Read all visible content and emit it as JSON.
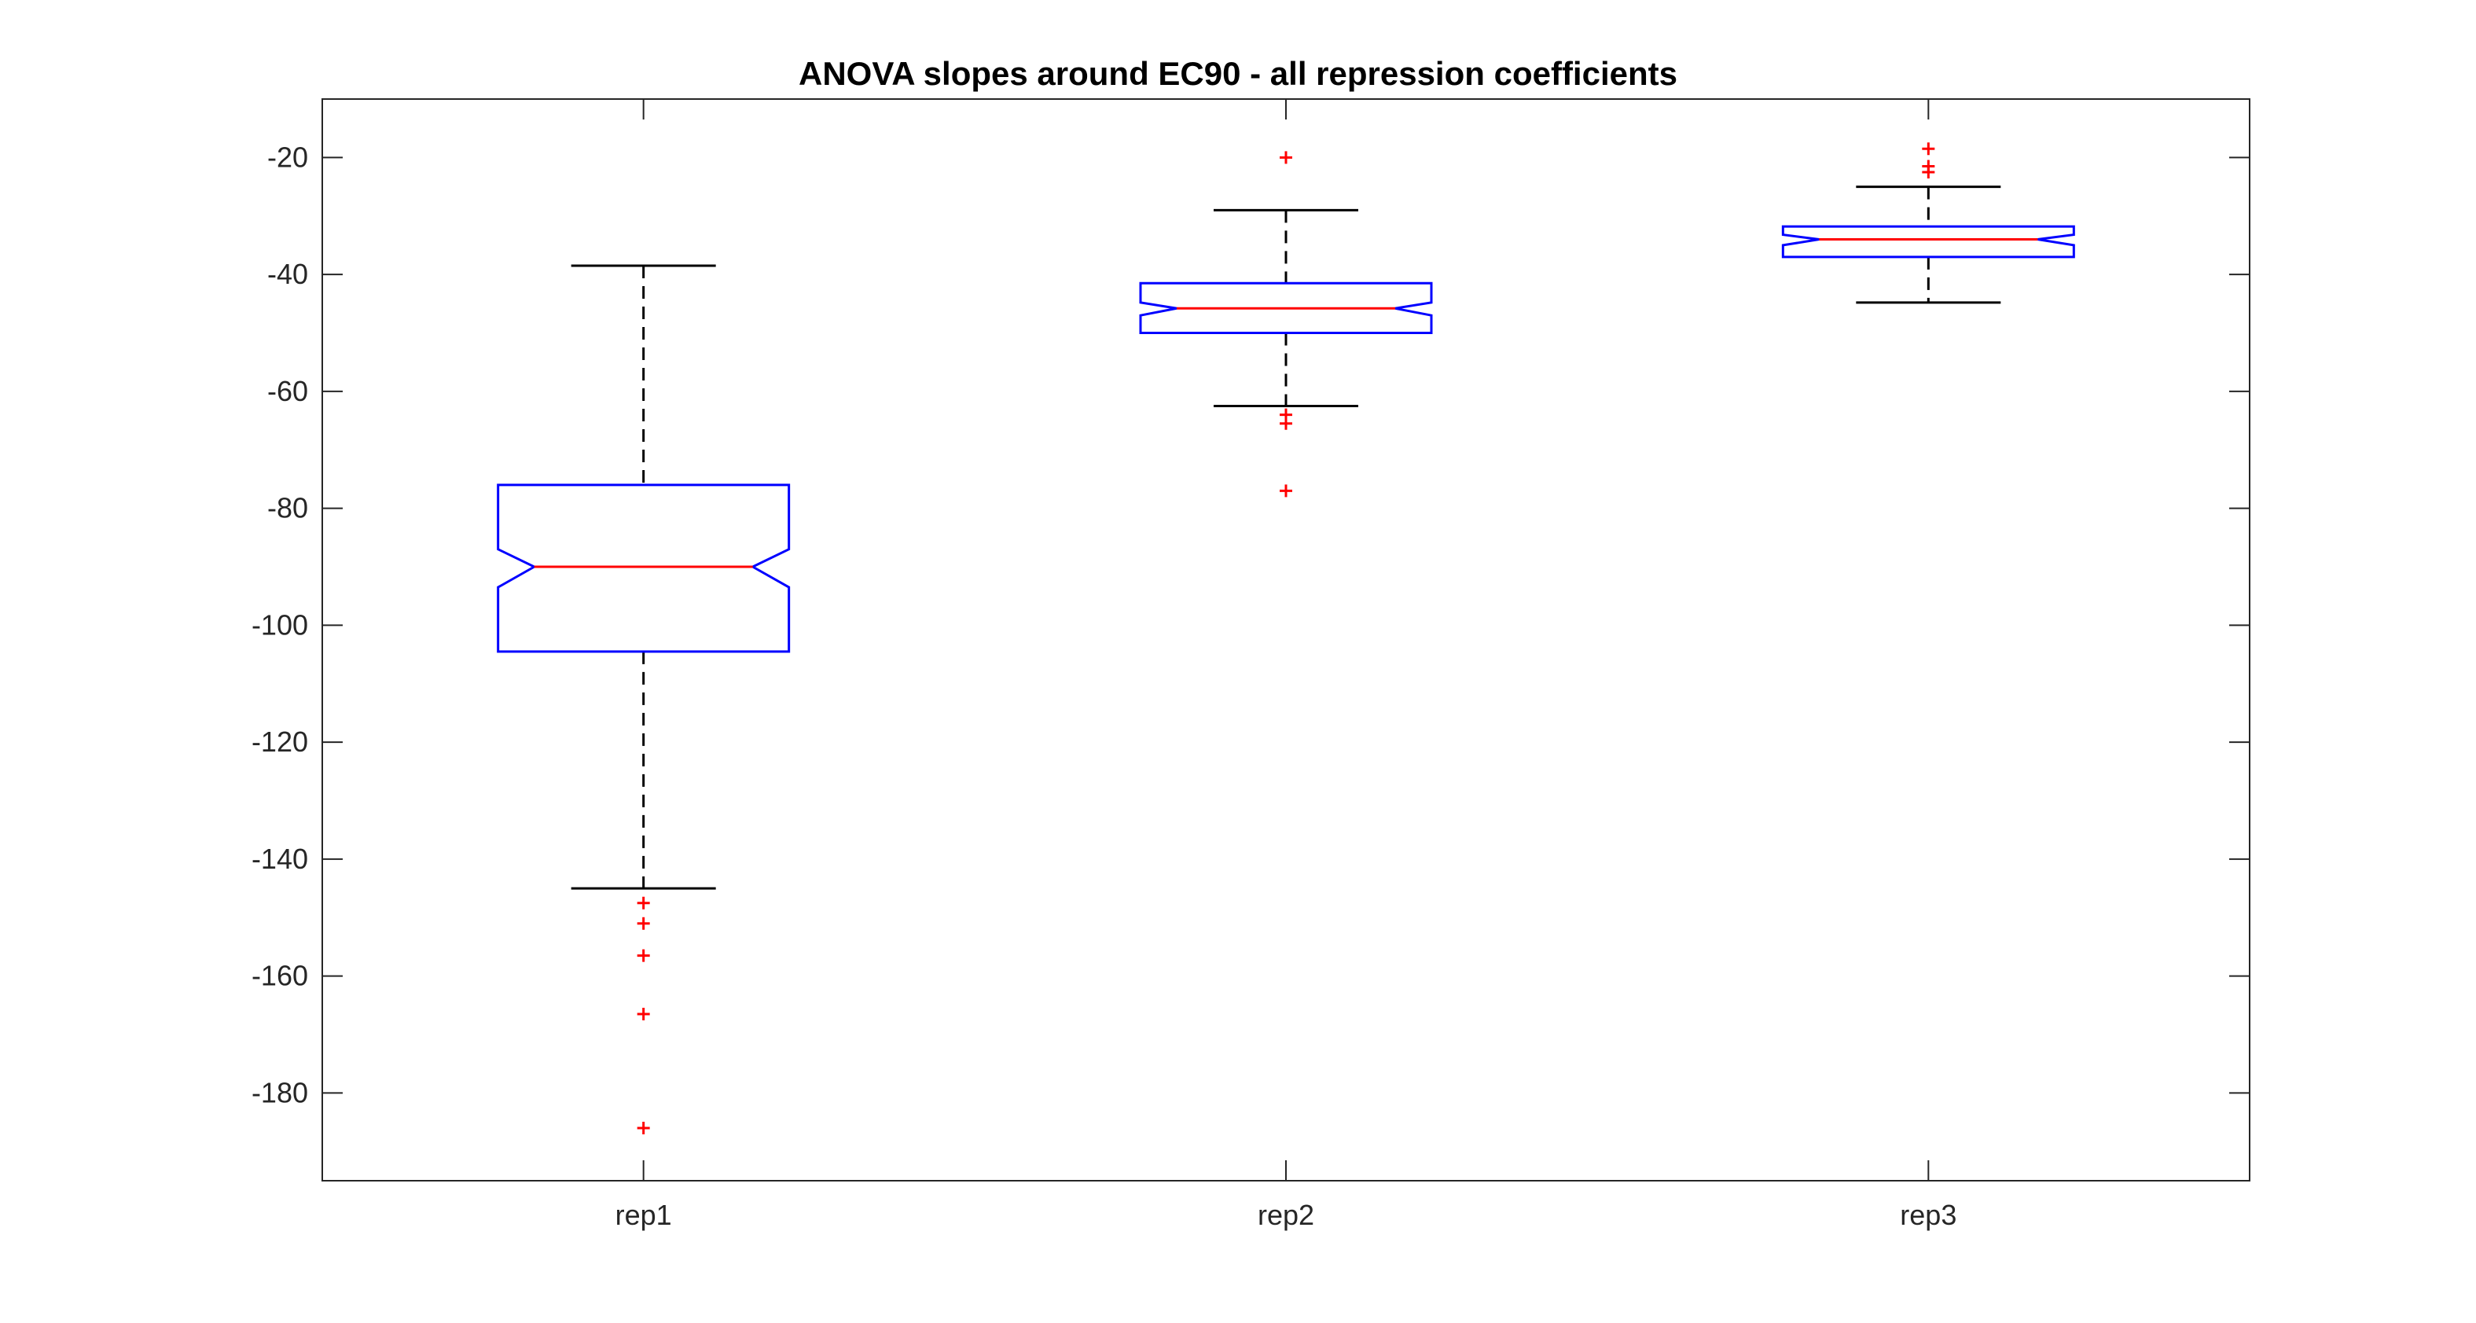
{
  "chart_data": {
    "type": "boxplot",
    "title": "ANOVA slopes around EC90 - all repression coefficients",
    "xlabel": "",
    "ylabel": "",
    "categories": [
      "rep1",
      "rep2",
      "rep3"
    ],
    "ylim": [
      -195,
      -10
    ],
    "yticks": [
      -20,
      -40,
      -60,
      -80,
      -100,
      -120,
      -140,
      -160,
      -180
    ],
    "grid": false,
    "notched": true,
    "boxes": [
      {
        "label": "rep1",
        "whisker_low": -145,
        "q1": -104.5,
        "notch_low": -93.5,
        "median": -90,
        "notch_high": -87,
        "q3": -76,
        "whisker_high": -38.5,
        "outliers": [
          -147.5,
          -151,
          -156.5,
          -166.5,
          -186
        ]
      },
      {
        "label": "rep2",
        "whisker_low": -62.5,
        "q1": -50,
        "notch_low": -47,
        "median": -45.8,
        "notch_high": -44.8,
        "q3": -41.5,
        "whisker_high": -29,
        "outliers": [
          -20,
          -64,
          -65.5,
          -77
        ]
      },
      {
        "label": "rep3",
        "whisker_low": -44.8,
        "q1": -37,
        "notch_low": -35,
        "median": -34,
        "notch_high": -33.2,
        "q3": -31.8,
        "whisker_high": -25,
        "outliers": [
          -18.5,
          -21.5,
          -22.5
        ]
      }
    ],
    "colors": {
      "box": "#0000ff",
      "median": "#ff0000",
      "whisker": "#000000",
      "outlier": "#ff0000",
      "axis": "#262626"
    }
  }
}
